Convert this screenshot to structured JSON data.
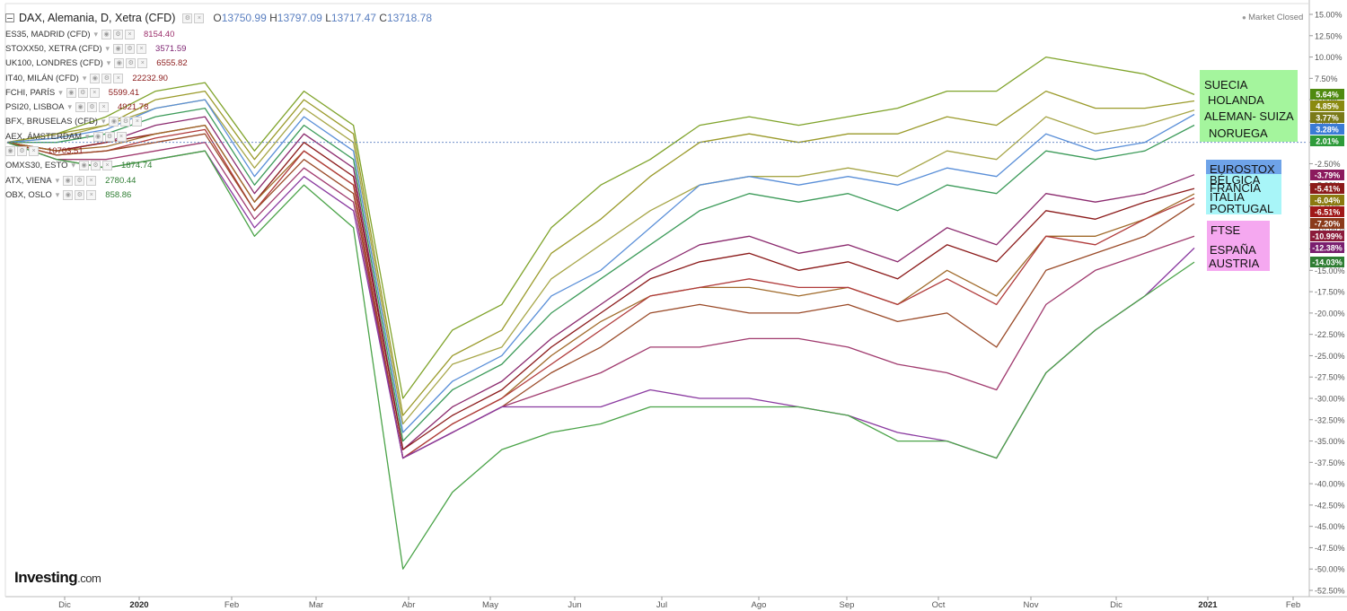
{
  "chart": {
    "symbol": "DAX, Alemania, D, Xetra (CFD)",
    "ohlc": {
      "o_label": "O",
      "o": "13750.99",
      "h_label": "H",
      "h": "13797.09",
      "l_label": "L",
      "l": "13717.47",
      "c_label": "C",
      "c": "13718.78"
    },
    "market_status": "Market Closed",
    "logo_text": "Investing",
    "logo_suffix": ".com"
  },
  "legend": [
    {
      "name": "ES35, MADRID (CFD)",
      "value": "8154.40",
      "color": "#9c2f6b"
    },
    {
      "name": "STOXX50, XETRA (CFD)",
      "value": "3571.59",
      "color": "#7a1e6e"
    },
    {
      "name": "UK100, LONDRES (CFD)",
      "value": "6555.82",
      "color": "#8b1a1a"
    },
    {
      "name": "IT40, MILÁN (CFD)",
      "value": "22232.90",
      "color": "#8b1a1a"
    },
    {
      "name": "FCHI, PARÍS",
      "value": "5599.41",
      "color": "#8b1a1a"
    },
    {
      "name": "PSI20, LISBOA",
      "value": "4921.78",
      "color": "#8b1a1a"
    },
    {
      "name": "BFX, BRUSELAS (CFD)",
      "value": "",
      "color": "#8b1a1a"
    },
    {
      "name": "AEX, ÁMSTERDAM",
      "value": "",
      "color": "#6b8e23"
    },
    {
      "name": "",
      "value": "10703.51",
      "color": "#8b1a1a"
    },
    {
      "name": "OMXS30, ESTO",
      "value": "1874.74",
      "color": "#2e7d32"
    },
    {
      "name": "ATX, VIENA",
      "value": "2780.44",
      "color": "#2e7d32"
    },
    {
      "name": "OBX, OSLO",
      "value": "858.86",
      "color": "#2e7d32"
    }
  ],
  "annotations": [
    {
      "text": "SUECIA",
      "group": "green"
    },
    {
      "text": "HOLANDA",
      "group": "green"
    },
    {
      "text": "ALEMAN- SUIZA",
      "group": "green"
    },
    {
      "text": "NORUEGA",
      "group": "green"
    },
    {
      "text": "EUROSTOX",
      "group": "blue"
    },
    {
      "text": "BÉLGICA",
      "group": "cyan"
    },
    {
      "text": "FRANCIA",
      "group": "cyan"
    },
    {
      "text": "ITALIA",
      "group": "cyan"
    },
    {
      "text": "PORTUGAL",
      "group": "cyan"
    },
    {
      "text": "FTSE",
      "group": "pink"
    },
    {
      "text": "ESPAÑA",
      "group": "pink"
    },
    {
      "text": "AUSTRIA",
      "group": "pink"
    }
  ],
  "annotation_colors": {
    "green": "#a4f59d",
    "blue": "#6ea3e8",
    "cyan": "#a8f5f8",
    "pink": "#f5a8f0"
  },
  "chart_data": {
    "type": "line",
    "x_ticks": [
      "Dic",
      "2020",
      "Feb",
      "Mar",
      "Abr",
      "May",
      "Jun",
      "Jul",
      "Ago",
      "Sep",
      "Oct",
      "Nov",
      "Dic",
      "2021",
      "Feb"
    ],
    "ylim": [
      -53,
      16
    ],
    "y_ticks": [
      "15.00%",
      "12.50%",
      "10.00%",
      "7.50%",
      "5.00%",
      "2.50%",
      "0.00%",
      "-2.50%",
      "-5.00%",
      "-7.50%",
      "-10.00%",
      "-12.50%",
      "-15.00%",
      "-17.50%",
      "-20.00%",
      "-22.50%",
      "-25.00%",
      "-27.50%",
      "-30.00%",
      "-32.50%",
      "-35.00%",
      "-37.50%",
      "-40.00%",
      "-42.50%",
      "-45.00%",
      "-47.50%",
      "-50.00%",
      "-52.50%"
    ],
    "y_tick_values": [
      15,
      12.5,
      10,
      7.5,
      5,
      2.5,
      0,
      -2.5,
      -5,
      -7.5,
      -10,
      -12.5,
      -15,
      -17.5,
      -20,
      -22.5,
      -25,
      -27.5,
      -30,
      -32.5,
      -35,
      -37.5,
      -40,
      -42.5,
      -45,
      -47.5,
      -50,
      -52.5
    ],
    "grid": false,
    "reference_line_value": 0,
    "end_badges": [
      {
        "label": "5.64%",
        "value": 5.64,
        "color": "#4f8a10"
      },
      {
        "label": "4.85%",
        "value": 4.85,
        "color": "#8a8a10"
      },
      {
        "label": "3.77%",
        "value": 3.77,
        "color": "#7a7a18"
      },
      {
        "label": "3.28%",
        "value": 3.28,
        "color": "#3a7bd5"
      },
      {
        "label": "2.01%",
        "value": 2.01,
        "color": "#2e9b3a"
      },
      {
        "label": "-3.79%",
        "value": -3.79,
        "color": "#8b1a5e"
      },
      {
        "label": "-5.41%",
        "value": -5.41,
        "color": "#8b1a1a"
      },
      {
        "label": "-6.04%",
        "value": -6.04,
        "color": "#8a7a10"
      },
      {
        "label": "-6.51%",
        "value": -6.51,
        "color": "#a01818"
      },
      {
        "label": "-7.20%",
        "value": -7.2,
        "color": "#8b3a1a"
      },
      {
        "label": "-10.99%",
        "value": -10.99,
        "color": "#8b1a3a"
      },
      {
        "label": "-12.38%",
        "value": -12.38,
        "color": "#7a1e6e"
      },
      {
        "label": "-14.03%",
        "value": -14.03,
        "color": "#2e7d32"
      }
    ],
    "series": [
      {
        "color": "#7fa32a",
        "values": [
          0,
          1,
          3,
          6,
          7,
          -1,
          6,
          2,
          -30,
          -22,
          -19,
          -10,
          -5,
          -2,
          2,
          3,
          2,
          3,
          4,
          6,
          6,
          10,
          9,
          8,
          5.6
        ]
      },
      {
        "color": "#9a9a2a",
        "values": [
          0,
          1,
          2,
          5,
          6,
          -2,
          5,
          1,
          -32,
          -25,
          -22,
          -13,
          -9,
          -4,
          0,
          1,
          0,
          1,
          1,
          3,
          2,
          6,
          4,
          4,
          4.85
        ]
      },
      {
        "color": "#a7a648",
        "values": [
          0,
          0.5,
          2,
          4,
          5,
          -3,
          4,
          0,
          -33,
          -26,
          -24,
          -16,
          -12,
          -8,
          -5,
          -4,
          -4,
          -3,
          -4,
          -1,
          -2,
          3,
          1,
          2,
          3.77
        ]
      },
      {
        "color": "#5a8fd8",
        "values": [
          0,
          0.5,
          1.5,
          4,
          5,
          -4,
          3,
          -1,
          -34,
          -28,
          -25,
          -18,
          -15,
          -10,
          -5,
          -4,
          -5,
          -4,
          -5,
          -3,
          -4,
          1,
          -1,
          0,
          3.28
        ]
      },
      {
        "color": "#3d9b5a",
        "values": [
          0,
          0,
          1,
          3,
          4,
          -5,
          2,
          -2,
          -35,
          -29,
          -26,
          -20,
          -16,
          -12,
          -8,
          -6,
          -7,
          -6,
          -8,
          -5,
          -6,
          -1,
          -2,
          -1,
          2.01
        ]
      },
      {
        "color": "#8b2a6e",
        "values": [
          0,
          -1,
          0,
          2,
          3,
          -6,
          1,
          -3,
          -36,
          -31,
          -28,
          -23,
          -19,
          -15,
          -12,
          -11,
          -13,
          -12,
          -14,
          -10,
          -12,
          -6,
          -7,
          -6,
          -3.79
        ]
      },
      {
        "color": "#8b1a1a",
        "values": [
          0,
          -1,
          0,
          1,
          2,
          -7,
          0,
          -4,
          -36,
          -32,
          -29,
          -24,
          -20,
          -16,
          -14,
          -13,
          -15,
          -14,
          -16,
          -12,
          -14,
          -8,
          -9,
          -7,
          -5.41
        ]
      },
      {
        "color": "#a06a2a",
        "values": [
          0,
          -1,
          -0.5,
          1,
          2,
          -7,
          -1,
          -5,
          -37,
          -33,
          -30,
          -25,
          -21,
          -18,
          -17,
          -17,
          -18,
          -17,
          -19,
          -15,
          -18,
          -11,
          -11,
          -9,
          -6.04
        ]
      },
      {
        "color": "#b03a3a",
        "values": [
          0,
          -1.5,
          -1,
          0.5,
          1.5,
          -8,
          -1,
          -5,
          -37,
          -33,
          -30,
          -26,
          -22,
          -18,
          -17,
          -16,
          -17,
          -17,
          -19,
          -16,
          -19,
          -11,
          -12,
          -9,
          -6.51
        ]
      },
      {
        "color": "#9a4a28",
        "values": [
          0,
          -1.5,
          -1,
          0,
          1,
          -8,
          -2,
          -6,
          -37,
          -34,
          -31,
          -27,
          -24,
          -20,
          -19,
          -20,
          -20,
          -19,
          -21,
          -20,
          -24,
          -15,
          -13,
          -11,
          -7.2
        ]
      },
      {
        "color": "#a03a6e",
        "values": [
          0,
          -2,
          -2,
          -1,
          0,
          -9,
          -3,
          -7,
          -37,
          -34,
          -31,
          -29,
          -27,
          -24,
          -24,
          -23,
          -23,
          -24,
          -26,
          -27,
          -29,
          -19,
          -15,
          -13,
          -10.99
        ]
      },
      {
        "color": "#8a3aa0",
        "values": [
          0,
          -2,
          -3,
          -2,
          -1,
          -10,
          -4,
          -8,
          -37,
          -34,
          -31,
          -31,
          -31,
          -29,
          -30,
          -30,
          -31,
          -32,
          -34,
          -35,
          -37,
          -27,
          -22,
          -18,
          -12.38
        ]
      },
      {
        "color": "#4aa348",
        "values": [
          0,
          -2,
          -3,
          -2,
          -1,
          -11,
          -5,
          -10,
          -50,
          -41,
          -36,
          -34,
          -33,
          -31,
          -31,
          -31,
          -31,
          -32,
          -35,
          -35,
          -37,
          -27,
          -22,
          -18,
          -14.03
        ]
      }
    ]
  }
}
